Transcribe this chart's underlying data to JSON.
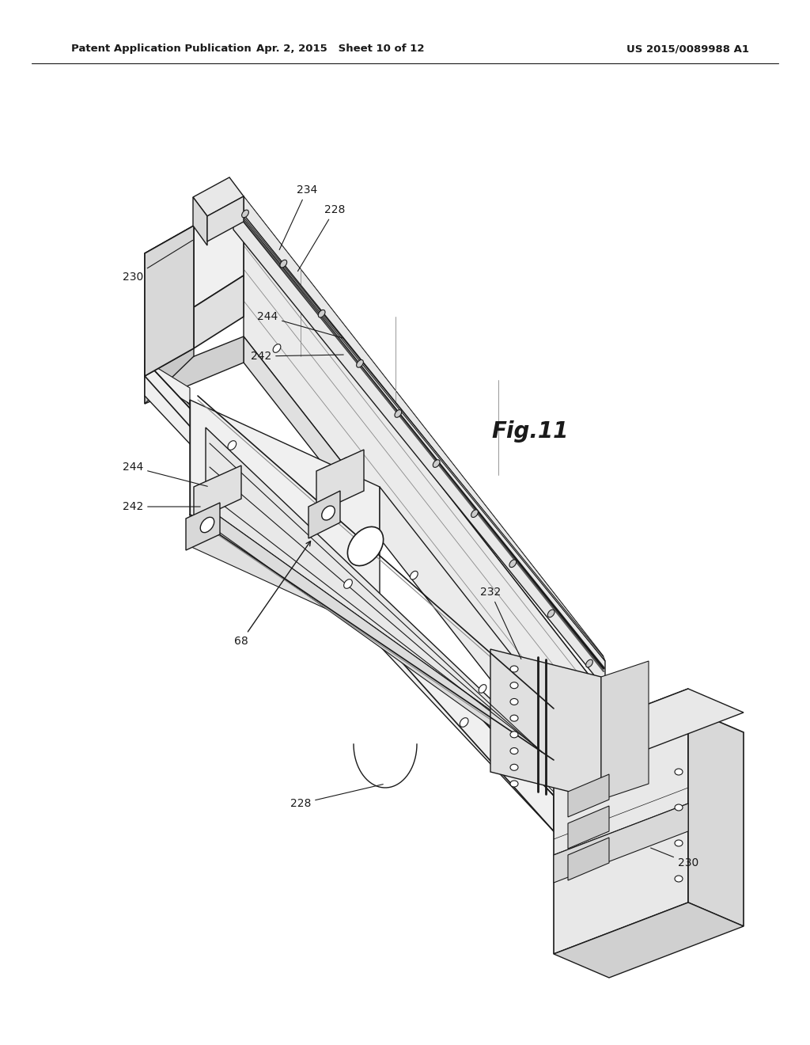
{
  "bg_color": "#ffffff",
  "line_color": "#1a1a1a",
  "header_left": "Patent Application Publication",
  "header_center": "Apr. 2, 2015   Sheet 10 of 12",
  "header_right": "US 2015/0089988 A1",
  "fig_label": "Fig.11",
  "fig_fontsize": 20
}
